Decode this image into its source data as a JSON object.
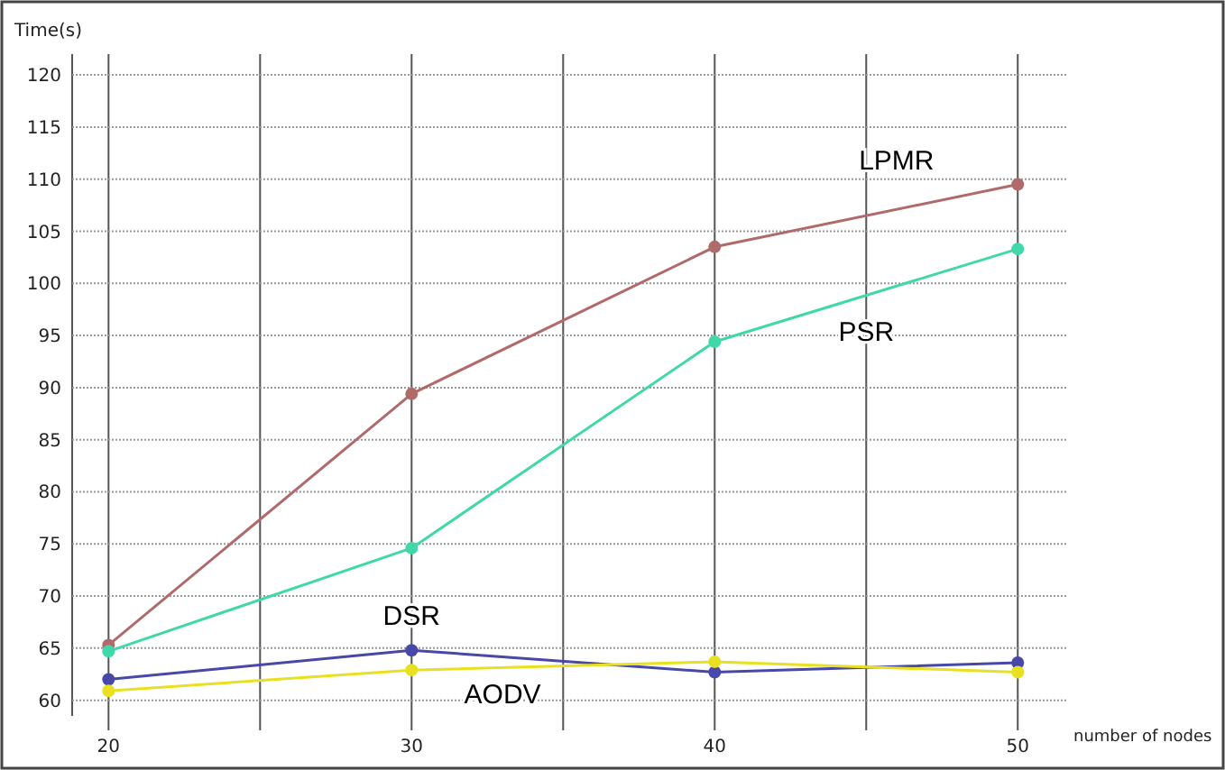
{
  "chart_data": {
    "type": "line",
    "xlabel": "number of nodes",
    "ylabel": "Time(s)",
    "x": [
      20,
      30,
      40,
      50
    ],
    "xlim": [
      18.8,
      51.6
    ],
    "xticks": [
      20,
      {
        "value": 25,
        "label": null
      },
      30,
      {
        "value": 35,
        "label": null
      },
      40,
      {
        "value": 45,
        "label": null
      },
      50
    ],
    "ylim": [
      58.5,
      122
    ],
    "yticks": [
      60,
      65,
      70,
      75,
      80,
      85,
      90,
      95,
      100,
      105,
      110,
      115,
      120
    ],
    "grid": true,
    "marker": "circle",
    "line_style": "solid",
    "series": [
      {
        "name": "LPMR",
        "color": "#b06a6a",
        "values": [
          65.3,
          89.4,
          103.5,
          109.5
        ]
      },
      {
        "name": "PSR",
        "color": "#40d8a8",
        "values": [
          64.7,
          74.6,
          94.4,
          103.3
        ]
      },
      {
        "name": "DSR",
        "color": "#4848a8",
        "values": [
          62,
          64.8,
          62.7,
          63.6
        ]
      },
      {
        "name": "AODV",
        "color": "#e8e020",
        "values": [
          60.9,
          62.9,
          63.7,
          62.7
        ]
      }
    ]
  }
}
